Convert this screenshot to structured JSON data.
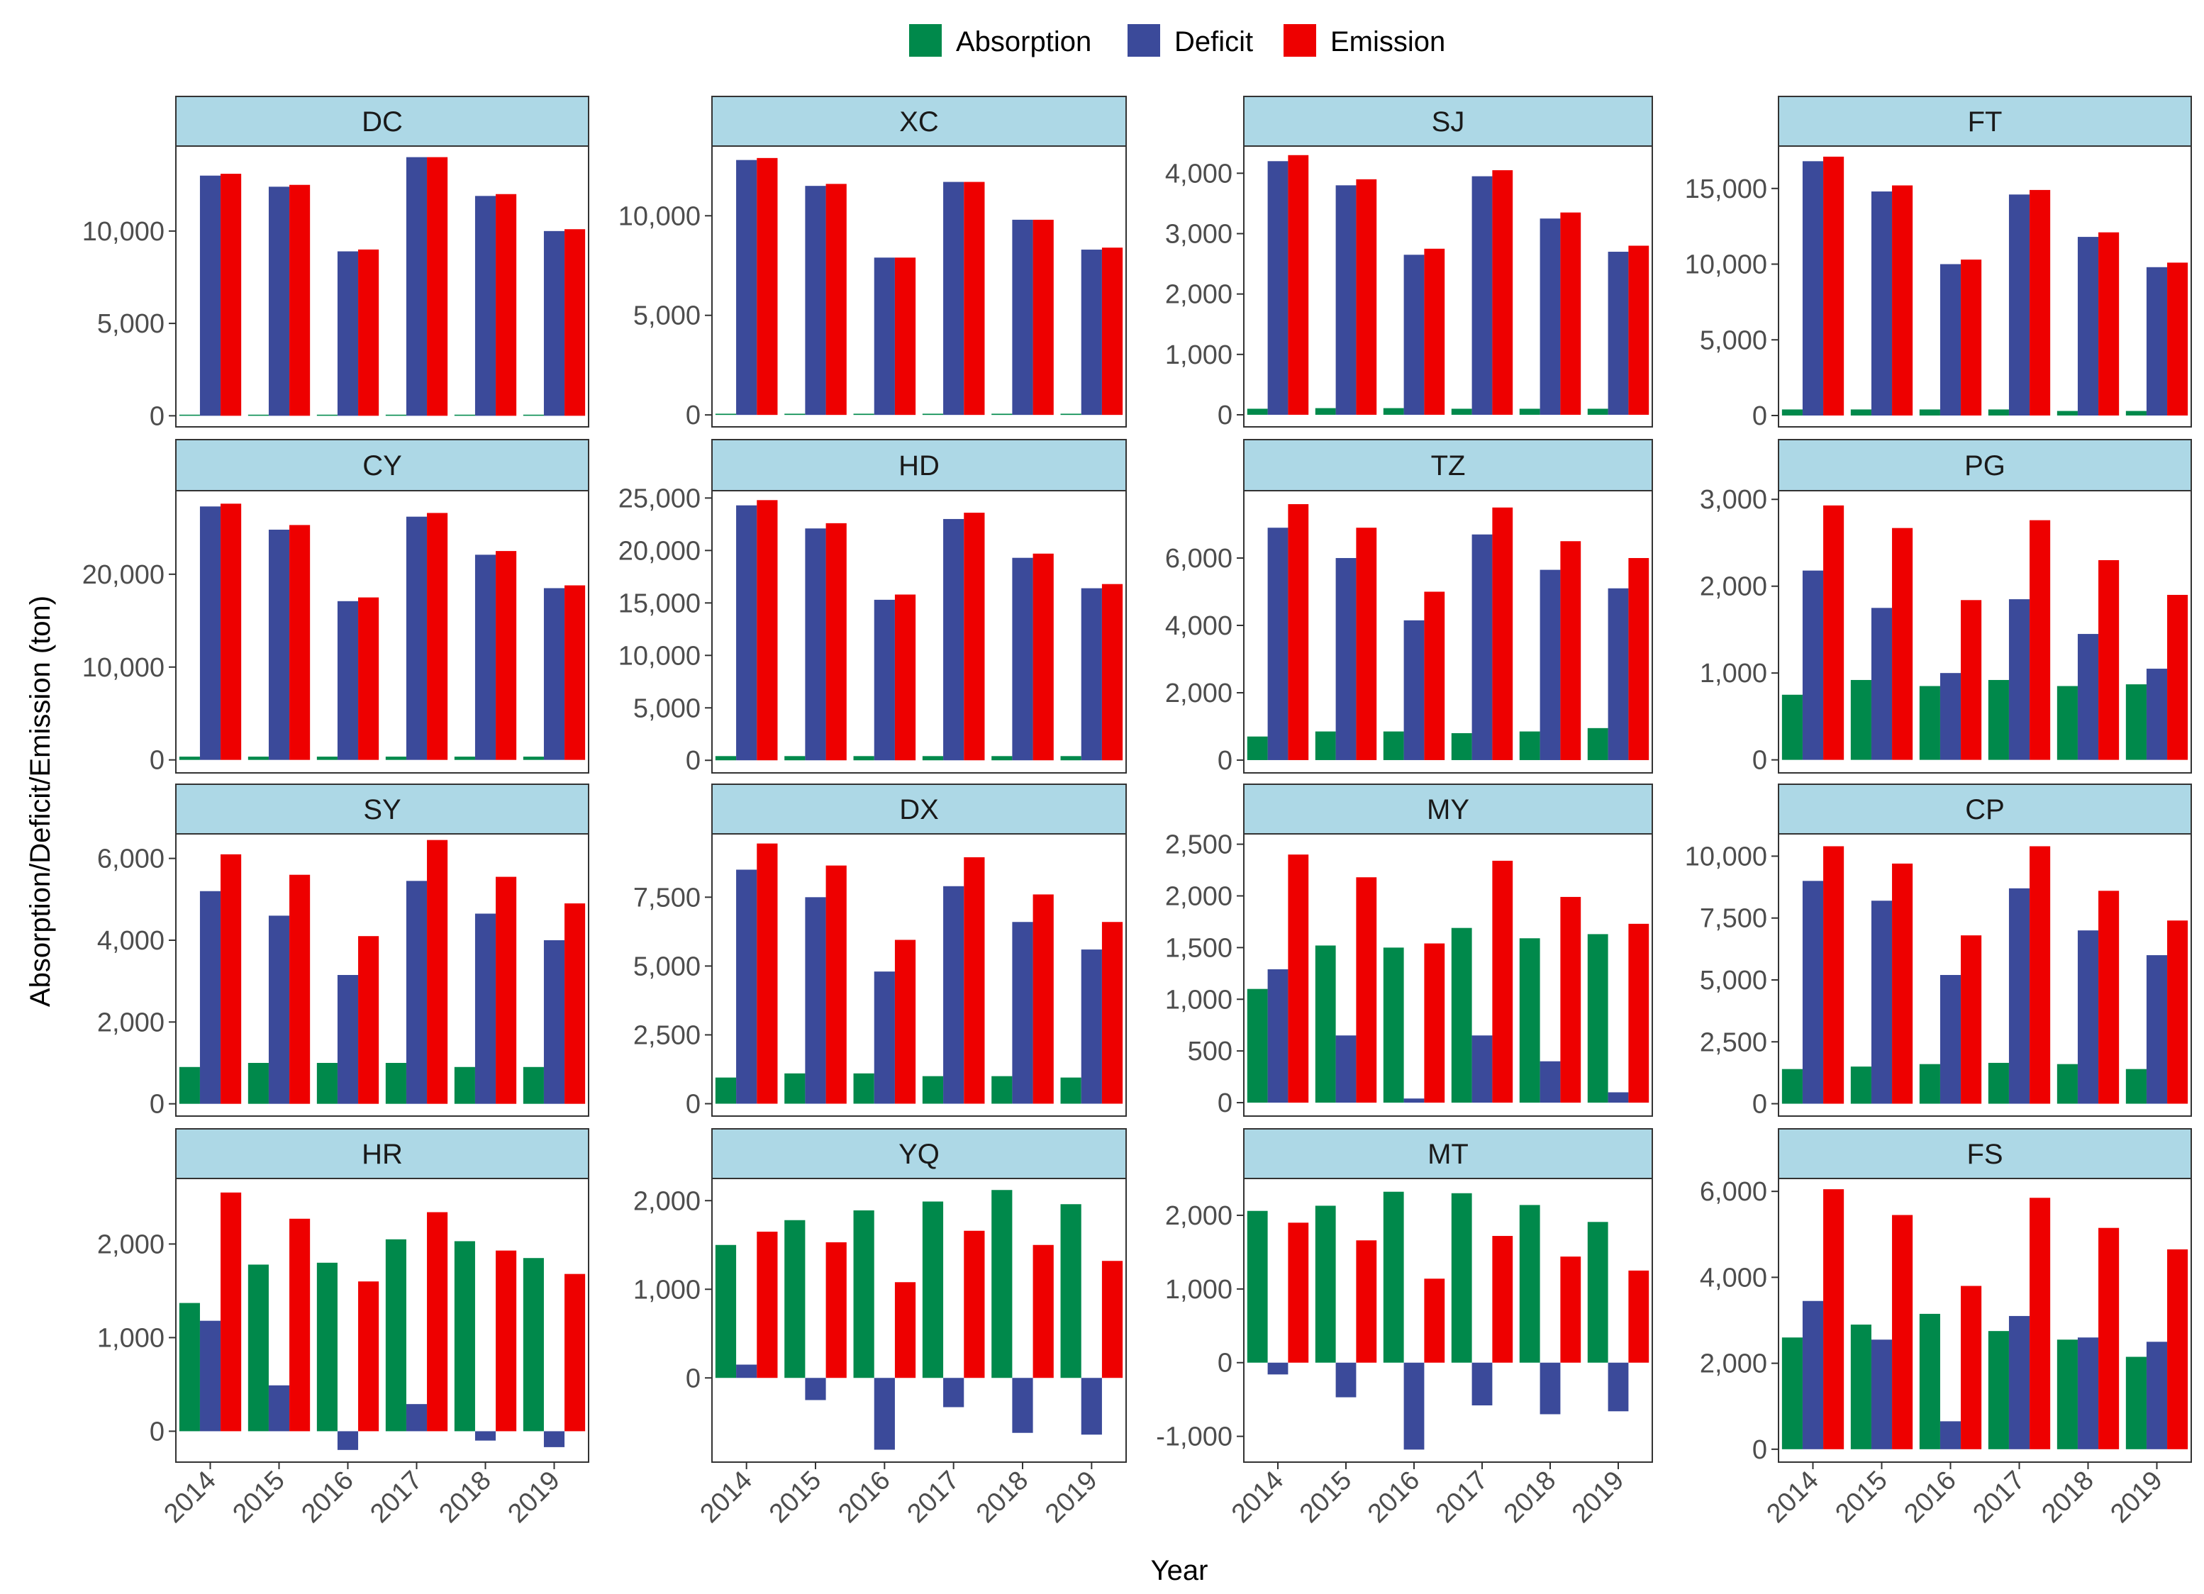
{
  "chart_data": {
    "type": "bar",
    "layout": "faceted 4x4 grouped bar chart",
    "xlabel": "Year",
    "ylabel": "Absorption/Deficit/Emission (ton)",
    "legend_position": "top",
    "grid": false,
    "categories": [
      "2014",
      "2015",
      "2016",
      "2017",
      "2018",
      "2019"
    ],
    "series_names": [
      "Absorption",
      "Deficit",
      "Emission"
    ],
    "colors": {
      "Absorption": "#00894B",
      "Deficit": "#3B4A9A",
      "Emission": "#EE0000",
      "strip": "#ADD8E6",
      "panel_border": "#333333",
      "tick_text": "#4D4D4D"
    },
    "panels": [
      {
        "name": "DC",
        "ylim": [
          -600,
          14600
        ],
        "ticks": [
          0,
          5000,
          10000
        ],
        "tick_labels": [
          "0",
          "5,000",
          "10,000"
        ],
        "series": [
          {
            "name": "Absorption",
            "values": [
              60,
              60,
              60,
              60,
              60,
              60
            ]
          },
          {
            "name": "Deficit",
            "values": [
              13000,
              12400,
              8900,
              14000,
              11900,
              10000
            ]
          },
          {
            "name": "Emission",
            "values": [
              13100,
              12500,
              9000,
              14000,
              12000,
              10100
            ]
          }
        ]
      },
      {
        "name": "XC",
        "ylim": [
          -600,
          13500
        ],
        "ticks": [
          0,
          5000,
          10000
        ],
        "tick_labels": [
          "0",
          "5,000",
          "10,000"
        ],
        "series": [
          {
            "name": "Absorption",
            "values": [
              60,
              60,
              60,
              60,
              60,
              60
            ]
          },
          {
            "name": "Deficit",
            "values": [
              12800,
              11500,
              7900,
              11700,
              9800,
              8300
            ]
          },
          {
            "name": "Emission",
            "values": [
              12900,
              11600,
              7900,
              11700,
              9800,
              8400
            ]
          }
        ]
      },
      {
        "name": "SJ",
        "ylim": [
          -200,
          4450
        ],
        "ticks": [
          0,
          1000,
          2000,
          3000,
          4000
        ],
        "tick_labels": [
          "0",
          "1,000",
          "2,000",
          "3,000",
          "4,000"
        ],
        "series": [
          {
            "name": "Absorption",
            "values": [
              100,
              110,
              110,
              100,
              100,
              100
            ]
          },
          {
            "name": "Deficit",
            "values": [
              4200,
              3800,
              2650,
              3950,
              3250,
              2700
            ]
          },
          {
            "name": "Emission",
            "values": [
              4300,
              3900,
              2750,
              4050,
              3350,
              2800
            ]
          }
        ]
      },
      {
        "name": "FT",
        "ylim": [
          -750,
          17800
        ],
        "ticks": [
          0,
          5000,
          10000,
          15000
        ],
        "tick_labels": [
          "0",
          "5,000",
          "10,000",
          "15,000"
        ],
        "series": [
          {
            "name": "Absorption",
            "values": [
              400,
              400,
              400,
              400,
              300,
              300
            ]
          },
          {
            "name": "Deficit",
            "values": [
              16800,
              14800,
              10000,
              14600,
              11800,
              9800
            ]
          },
          {
            "name": "Emission",
            "values": [
              17100,
              15200,
              10300,
              14900,
              12100,
              10100
            ]
          }
        ]
      },
      {
        "name": "CY",
        "ylim": [
          -1400,
          29000
        ],
        "ticks": [
          0,
          10000,
          20000
        ],
        "tick_labels": [
          "0",
          "10,000",
          "20,000"
        ],
        "series": [
          {
            "name": "Absorption",
            "values": [
              350,
              350,
              350,
              350,
              350,
              350
            ]
          },
          {
            "name": "Deficit",
            "values": [
              27300,
              24800,
              17100,
              26200,
              22100,
              18500
            ]
          },
          {
            "name": "Emission",
            "values": [
              27600,
              25300,
              17500,
              26600,
              22500,
              18800
            ]
          }
        ]
      },
      {
        "name": "HD",
        "ylim": [
          -1200,
          25700
        ],
        "ticks": [
          0,
          5000,
          10000,
          15000,
          20000,
          25000
        ],
        "tick_labels": [
          "0",
          "5,000",
          "10,000",
          "15,000",
          "20,000",
          "25,000"
        ],
        "series": [
          {
            "name": "Absorption",
            "values": [
              400,
              400,
              400,
              400,
              400,
              400
            ]
          },
          {
            "name": "Deficit",
            "values": [
              24300,
              22100,
              15300,
              23000,
              19300,
              16400
            ]
          },
          {
            "name": "Emission",
            "values": [
              24800,
              22600,
              15800,
              23600,
              19700,
              16800
            ]
          }
        ]
      },
      {
        "name": "TZ",
        "ylim": [
          -380,
          8000
        ],
        "ticks": [
          0,
          2000,
          4000,
          6000
        ],
        "tick_labels": [
          "0",
          "2,000",
          "4,000",
          "6,000"
        ],
        "series": [
          {
            "name": "Absorption",
            "values": [
              700,
              850,
              850,
              800,
              850,
              950
            ]
          },
          {
            "name": "Deficit",
            "values": [
              6900,
              6000,
              4150,
              6700,
              5650,
              5100
            ]
          },
          {
            "name": "Emission",
            "values": [
              7600,
              6900,
              5000,
              7500,
              6500,
              6000
            ]
          }
        ]
      },
      {
        "name": "PG",
        "ylim": [
          -150,
          3100
        ],
        "ticks": [
          0,
          1000,
          2000,
          3000
        ],
        "tick_labels": [
          "0",
          "1,000",
          "2,000",
          "3,000"
        ],
        "series": [
          {
            "name": "Absorption",
            "values": [
              750,
              920,
              850,
              920,
              850,
              870
            ]
          },
          {
            "name": "Deficit",
            "values": [
              2180,
              1750,
              1000,
              1850,
              1450,
              1050
            ]
          },
          {
            "name": "Emission",
            "values": [
              2930,
              2670,
              1840,
              2760,
              2300,
              1900
            ]
          }
        ]
      },
      {
        "name": "SY",
        "ylim": [
          -300,
          6600
        ],
        "ticks": [
          0,
          2000,
          4000,
          6000
        ],
        "tick_labels": [
          "0",
          "2,000",
          "4,000",
          "6,000"
        ],
        "series": [
          {
            "name": "Absorption",
            "values": [
              900,
              1000,
              1000,
              1000,
              900,
              900
            ]
          },
          {
            "name": "Deficit",
            "values": [
              5200,
              4600,
              3150,
              5450,
              4650,
              4000
            ]
          },
          {
            "name": "Emission",
            "values": [
              6100,
              5600,
              4100,
              6450,
              5550,
              4900
            ]
          }
        ]
      },
      {
        "name": "DX",
        "ylim": [
          -450,
          9800
        ],
        "ticks": [
          0,
          2500,
          5000,
          7500
        ],
        "tick_labels": [
          "0",
          "2,500",
          "5,000",
          "7,500"
        ],
        "series": [
          {
            "name": "Absorption",
            "values": [
              950,
              1100,
              1100,
              1000,
              1000,
              950
            ]
          },
          {
            "name": "Deficit",
            "values": [
              8500,
              7500,
              4800,
              7900,
              6600,
              5600
            ]
          },
          {
            "name": "Emission",
            "values": [
              9450,
              8650,
              5950,
              8950,
              7600,
              6600
            ]
          }
        ]
      },
      {
        "name": "MY",
        "ylim": [
          -130,
          2600
        ],
        "ticks": [
          0,
          500,
          1000,
          1500,
          2000,
          2500
        ],
        "tick_labels": [
          "0",
          "500",
          "1,000",
          "1,500",
          "2,000",
          "2,500"
        ],
        "series": [
          {
            "name": "Absorption",
            "values": [
              1100,
              1520,
              1500,
              1690,
              1590,
              1630
            ]
          },
          {
            "name": "Deficit",
            "values": [
              1290,
              650,
              40,
              650,
              400,
              100
            ]
          },
          {
            "name": "Emission",
            "values": [
              2400,
              2180,
              1540,
              2340,
              1990,
              1730
            ]
          }
        ]
      },
      {
        "name": "CP",
        "ylim": [
          -500,
          10900
        ],
        "ticks": [
          0,
          2500,
          5000,
          7500,
          10000
        ],
        "tick_labels": [
          "0",
          "2,500",
          "5,000",
          "7,500",
          "10,000"
        ],
        "series": [
          {
            "name": "Absorption",
            "values": [
              1400,
              1500,
              1600,
              1650,
              1600,
              1400
            ]
          },
          {
            "name": "Deficit",
            "values": [
              9000,
              8200,
              5200,
              8700,
              7000,
              6000
            ]
          },
          {
            "name": "Emission",
            "values": [
              10400,
              9700,
              6800,
              10400,
              8600,
              7400
            ]
          }
        ]
      },
      {
        "name": "HR",
        "ylim": [
          -330,
          2700
        ],
        "ticks": [
          0,
          1000,
          2000
        ],
        "tick_labels": [
          "0",
          "1,000",
          "2,000"
        ],
        "series": [
          {
            "name": "Absorption",
            "values": [
              1370,
              1780,
              1800,
              2050,
              2030,
              1850
            ]
          },
          {
            "name": "Deficit",
            "values": [
              1180,
              490,
              -200,
              290,
              -100,
              -170
            ]
          },
          {
            "name": "Emission",
            "values": [
              2550,
              2270,
              1600,
              2340,
              1930,
              1680
            ]
          }
        ]
      },
      {
        "name": "YQ",
        "ylim": [
          -950,
          2250
        ],
        "ticks": [
          0,
          1000,
          2000
        ],
        "tick_labels": [
          "0",
          "1,000",
          "2,000"
        ],
        "series": [
          {
            "name": "Absorption",
            "values": [
              1500,
              1780,
              1890,
              1990,
              2120,
              1960
            ]
          },
          {
            "name": "Deficit",
            "values": [
              150,
              -250,
              -810,
              -330,
              -620,
              -640
            ]
          },
          {
            "name": "Emission",
            "values": [
              1650,
              1530,
              1080,
              1660,
              1500,
              1320
            ]
          }
        ]
      },
      {
        "name": "MT",
        "ylim": [
          -1350,
          2500
        ],
        "ticks": [
          -1000,
          0,
          1000,
          2000
        ],
        "tick_labels": [
          "-1,000",
          "0",
          "1,000",
          "2,000"
        ],
        "series": [
          {
            "name": "Absorption",
            "values": [
              2060,
              2130,
              2320,
              2300,
              2140,
              1910
            ]
          },
          {
            "name": "Deficit",
            "values": [
              -160,
              -470,
              -1180,
              -580,
              -700,
              -660
            ]
          },
          {
            "name": "Emission",
            "values": [
              1900,
              1660,
              1140,
              1720,
              1440,
              1250
            ]
          }
        ]
      },
      {
        "name": "FS",
        "ylim": [
          -300,
          6300
        ],
        "ticks": [
          0,
          2000,
          4000,
          6000
        ],
        "tick_labels": [
          "0",
          "2,000",
          "4,000",
          "6,000"
        ],
        "series": [
          {
            "name": "Absorption",
            "values": [
              2600,
              2900,
              3150,
              2750,
              2550,
              2150
            ]
          },
          {
            "name": "Deficit",
            "values": [
              3450,
              2550,
              650,
              3100,
              2600,
              2500
            ]
          },
          {
            "name": "Emission",
            "values": [
              6050,
              5450,
              3800,
              5850,
              5150,
              4650
            ]
          }
        ]
      }
    ]
  }
}
